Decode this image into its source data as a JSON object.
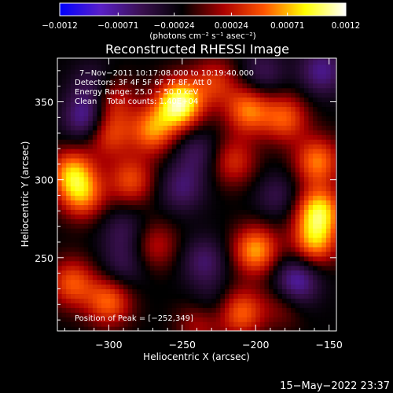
{
  "chart_data": {
    "type": "heatmap",
    "title": "Reconstructed RHESSI Image",
    "xlabel": "Heliocentric X (arcsec)",
    "ylabel": "Heliocentric Y (arcsec)",
    "xlim": [
      -335,
      -145
    ],
    "ylim": [
      203,
      378
    ],
    "x_ticks": [
      -300,
      -250,
      -200,
      -150
    ],
    "y_ticks": [
      250,
      300,
      350
    ],
    "x_tick_labels": [
      "−300",
      "−250",
      "−200",
      "−150"
    ],
    "y_tick_labels": [
      "250",
      "300",
      "350"
    ],
    "colorbar": {
      "ticks": [
        -0.0012,
        -0.00071,
        -0.00024,
        0.00024,
        0.00071,
        0.0012
      ],
      "tick_labels": [
        "−0.0012",
        "−0.00071",
        "−0.00024",
        "0.00024",
        "0.00071",
        "0.0012"
      ],
      "units_label": "(photons cm⁻² s⁻¹ asec⁻²)",
      "colors": [
        "#0000ff",
        "#5a20c8",
        "#3a1050",
        "#000000",
        "#aa0000",
        "#ff5500",
        "#ffff00",
        "#ffffff"
      ]
    },
    "info_lines": [
      "7−Nov−2011 10:17:08.000 to 10:19:40.000",
      "Detectors: 3F 4F 5F 6F 7F 8F, Att 0",
      "Energy Range: 25.0 − 50.0 keV",
      "Clean    Total counts: 1.40E+04"
    ],
    "peak_label": "Position of Peak = [−252,349]",
    "peak_position": [
      -252,
      349
    ],
    "peak_value": 0.0012,
    "sources": [
      {
        "x": -252,
        "y": 349,
        "amp": 0.00125
      },
      {
        "x": -270,
        "y": 332,
        "amp": 0.00075
      },
      {
        "x": -285,
        "y": 300,
        "amp": 0.0006
      },
      {
        "x": -300,
        "y": 330,
        "amp": 0.0006
      },
      {
        "x": -325,
        "y": 305,
        "amp": 0.0008
      },
      {
        "x": -318,
        "y": 290,
        "amp": 0.0007
      },
      {
        "x": -298,
        "y": 352,
        "amp": 0.0005
      },
      {
        "x": -228,
        "y": 363,
        "amp": 0.0005
      },
      {
        "x": -205,
        "y": 345,
        "amp": 0.00075
      },
      {
        "x": -215,
        "y": 312,
        "amp": 0.0005
      },
      {
        "x": -180,
        "y": 340,
        "amp": 0.00065
      },
      {
        "x": -200,
        "y": 255,
        "amp": 0.00085
      },
      {
        "x": -210,
        "y": 215,
        "amp": 0.0007
      },
      {
        "x": -157,
        "y": 280,
        "amp": 0.001
      },
      {
        "x": -160,
        "y": 260,
        "amp": 0.0008
      },
      {
        "x": -158,
        "y": 312,
        "amp": 0.00075
      },
      {
        "x": -325,
        "y": 234,
        "amp": 0.00065
      },
      {
        "x": -300,
        "y": 222,
        "amp": 0.0007
      },
      {
        "x": -268,
        "y": 258,
        "amp": 0.0004
      },
      {
        "x": -238,
        "y": 208,
        "amp": 0.0004
      },
      {
        "x": -180,
        "y": 222,
        "amp": 0.00045
      },
      {
        "x": -250,
        "y": 295,
        "amp": -0.0004
      },
      {
        "x": -235,
        "y": 248,
        "amp": -0.0004
      },
      {
        "x": -290,
        "y": 268,
        "amp": -0.0003
      },
      {
        "x": -170,
        "y": 240,
        "amp": -0.0003
      },
      {
        "x": -230,
        "y": 220,
        "amp": -0.00025
      },
      {
        "x": -185,
        "y": 290,
        "amp": -0.0003
      },
      {
        "x": -310,
        "y": 360,
        "amp": -0.00035
      },
      {
        "x": -155,
        "y": 370,
        "amp": -0.0005
      },
      {
        "x": -290,
        "y": 245,
        "amp": -0.0003
      },
      {
        "x": -175,
        "y": 230,
        "amp": -0.00055
      },
      {
        "x": -315,
        "y": 340,
        "amp": -0.0006
      },
      {
        "x": -240,
        "y": 318,
        "amp": -0.00035
      },
      {
        "x": -195,
        "y": 368,
        "amp": -0.00035
      }
    ]
  },
  "footer": {
    "timestamp": "15−May−2022 23:37"
  }
}
